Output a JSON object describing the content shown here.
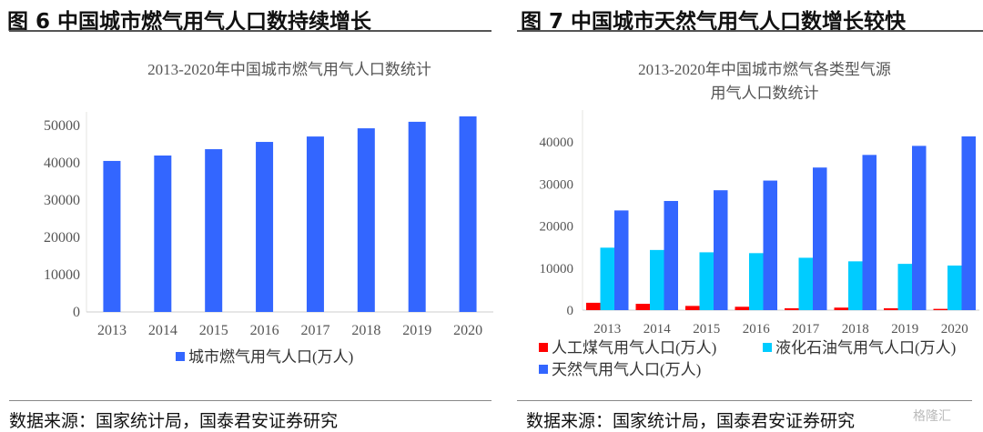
{
  "figures": [
    {
      "label": "图 6  中国城市燃气用气人口数持续增长",
      "source": "数据来源：国家统计局，国泰君安证券研究"
    },
    {
      "label": "图 7  中国城市天然气用气人口数增长较快",
      "source": "数据来源：国家统计局，国泰君安证券研究"
    }
  ],
  "watermark": "格隆汇",
  "chart_data": [
    {
      "type": "bar",
      "title": "2013-2020年中国城市燃气用气人口数统计",
      "categories": [
        "2013",
        "2014",
        "2015",
        "2016",
        "2017",
        "2018",
        "2019",
        "2020"
      ],
      "series": [
        {
          "name": "城市燃气用气人口(万人)",
          "color": "#3366ff",
          "values": [
            40500,
            41950,
            43650,
            45600,
            47050,
            49250,
            51000,
            52450
          ]
        }
      ],
      "yticks": [
        0,
        10000,
        20000,
        30000,
        40000,
        50000
      ],
      "ylim": [
        0,
        55000
      ],
      "legend": "bottom",
      "grid": false
    },
    {
      "type": "bar",
      "title": "2013-2020年中国城市燃气各类型气源用气人口数统计",
      "categories": [
        "2013",
        "2014",
        "2015",
        "2016",
        "2017",
        "2018",
        "2019",
        "2020"
      ],
      "series": [
        {
          "name": "人工煤气用气人口(万人)",
          "color": "#ff0000",
          "values": [
            1750,
            1500,
            1000,
            800,
            450,
            600,
            450,
            300
          ]
        },
        {
          "name": "液化石油气用气人口(万人)",
          "color": "#00ccff",
          "values": [
            14850,
            14300,
            13750,
            13550,
            12450,
            11600,
            11000,
            10600
          ]
        },
        {
          "name": "天然气用气人口(万人)",
          "color": "#3366ff",
          "values": [
            23700,
            25950,
            28500,
            30800,
            33900,
            36900,
            39050,
            41300
          ]
        }
      ],
      "yticks": [
        0,
        10000,
        20000,
        30000,
        40000
      ],
      "ylim": [
        0,
        43000
      ],
      "legend": "bottom",
      "grid": false
    }
  ]
}
